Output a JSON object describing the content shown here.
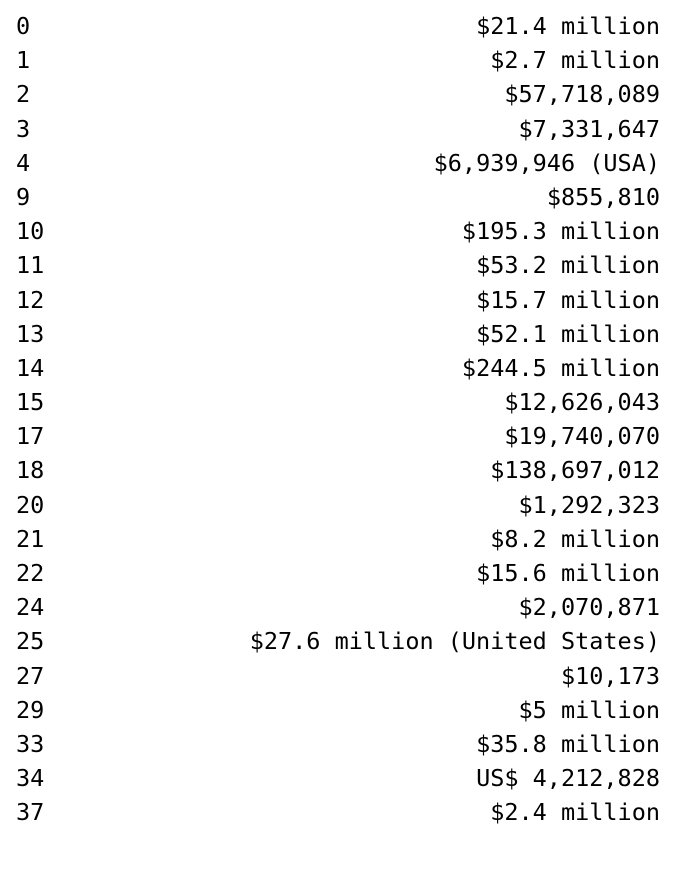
{
  "series_output": {
    "rows": [
      {
        "index": "0",
        "value": "$21.4 million"
      },
      {
        "index": "1",
        "value": "$2.7 million"
      },
      {
        "index": "2",
        "value": "$57,718,089"
      },
      {
        "index": "3",
        "value": "$7,331,647"
      },
      {
        "index": "4",
        "value": "$6,939,946 (USA)"
      },
      {
        "index": "9",
        "value": "$855,810"
      },
      {
        "index": "10",
        "value": "$195.3 million"
      },
      {
        "index": "11",
        "value": "$53.2 million"
      },
      {
        "index": "12",
        "value": "$15.7 million"
      },
      {
        "index": "13",
        "value": "$52.1 million"
      },
      {
        "index": "14",
        "value": "$244.5 million"
      },
      {
        "index": "15",
        "value": "$12,626,043"
      },
      {
        "index": "17",
        "value": "$19,740,070"
      },
      {
        "index": "18",
        "value": "$138,697,012"
      },
      {
        "index": "20",
        "value": "$1,292,323"
      },
      {
        "index": "21",
        "value": "$8.2 million"
      },
      {
        "index": "22",
        "value": "$15.6 million"
      },
      {
        "index": "24",
        "value": "$2,070,871"
      },
      {
        "index": "25",
        "value": "$27.6 million (United States)"
      },
      {
        "index": "27",
        "value": "$10,173"
      },
      {
        "index": "29",
        "value": "$5 million"
      },
      {
        "index": "33",
        "value": "$35.8 million"
      },
      {
        "index": "34",
        "value": "US$ 4,212,828"
      },
      {
        "index": "37",
        "value": "$2.4 million"
      }
    ]
  }
}
